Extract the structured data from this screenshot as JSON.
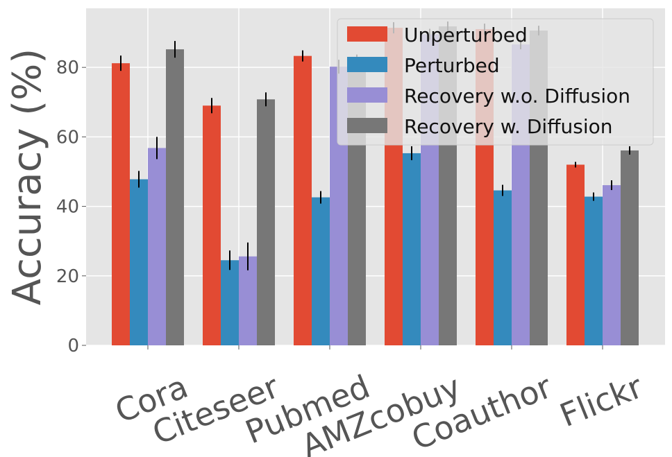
{
  "colors": {
    "background": "#e5e5e5",
    "grid": "#ffffff",
    "error_bar": "#000000"
  },
  "chart_data": {
    "type": "bar",
    "title": "",
    "xlabel": "",
    "ylabel": "Accuracy (%)",
    "ylim": [
      0,
      97
    ],
    "yticks": [
      0,
      20,
      40,
      60,
      80
    ],
    "grid": true,
    "legend_position": "top-right",
    "categories": [
      "Cora",
      "Citeseer",
      "Pubmed",
      "AMZcobuy",
      "Coauthor",
      "Flickr"
    ],
    "series": [
      {
        "name": "Unperturbed",
        "color": "#e24a33",
        "values": [
          81.2,
          69.0,
          83.3,
          91.4,
          91.0,
          52.0
        ],
        "errors": [
          2.2,
          2.2,
          1.6,
          1.6,
          1.6,
          0.8
        ]
      },
      {
        "name": "Perturbed",
        "color": "#348abd",
        "values": [
          47.8,
          24.5,
          42.6,
          55.3,
          44.6,
          42.8
        ],
        "errors": [
          2.4,
          2.8,
          1.8,
          2.0,
          1.6,
          1.2
        ]
      },
      {
        "name": "Recovery w.o. Diffusion",
        "color": "#988ed5",
        "values": [
          56.8,
          25.6,
          80.2,
          89.5,
          86.6,
          46.1
        ],
        "errors": [
          3.2,
          4.0,
          2.0,
          1.6,
          1.4,
          1.4
        ]
      },
      {
        "name": "Recovery w. Diffusion",
        "color": "#777777",
        "values": [
          85.2,
          70.8,
          81.5,
          91.8,
          90.6,
          56.1
        ],
        "errors": [
          2.4,
          2.0,
          2.2,
          1.4,
          1.4,
          1.2
        ]
      }
    ]
  }
}
